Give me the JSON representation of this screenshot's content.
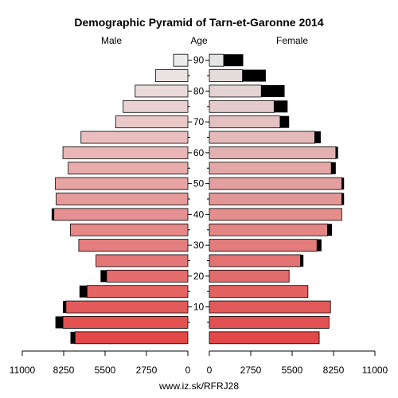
{
  "chart_data": {
    "type": "bar",
    "title": "Demographic Pyramid of Tarn-et-Garonne 2014",
    "left_label": "Male",
    "center_label": "Age",
    "right_label": "Female",
    "footer": "www.iz.sk/RFRJ28",
    "x_max": 11000,
    "x_tick_values": [
      11000,
      8250,
      5500,
      2750,
      0
    ],
    "x_tick_labels_male": [
      "11000",
      "8250",
      "5500",
      "2750",
      "0"
    ],
    "x_tick_labels_female": [
      "0",
      "2750",
      "5500",
      "8250",
      "11000"
    ],
    "age_ticks": [
      10,
      20,
      30,
      40,
      50,
      60,
      70,
      80,
      90
    ],
    "age_tick_labels": [
      "10",
      "20",
      "30",
      "40",
      "50",
      "60",
      "70",
      "80",
      "90"
    ],
    "age_groups": [
      "0-4",
      "5-9",
      "10-14",
      "15-19",
      "20-24",
      "25-29",
      "30-34",
      "35-39",
      "40-44",
      "45-49",
      "50-54",
      "55-59",
      "60-64",
      "65-69",
      "70-74",
      "75-79",
      "80-84",
      "85-89",
      "90+"
    ],
    "male": [
      7500,
      8300,
      8100,
      6700,
      5400,
      6100,
      7250,
      7800,
      8900,
      8750,
      8800,
      7950,
      8300,
      7100,
      4800,
      4300,
      3500,
      2150,
      950
    ],
    "male_excess": [
      300,
      500,
      200,
      500,
      400,
      0,
      0,
      0,
      150,
      0,
      0,
      0,
      0,
      0,
      0,
      0,
      0,
      0,
      0
    ],
    "female": [
      7300,
      7950,
      8050,
      6550,
      5300,
      6050,
      7150,
      7850,
      8800,
      8800,
      8800,
      8100,
      8400,
      7000,
      4700,
      4300,
      3450,
      2200,
      950
    ],
    "female_excess": [
      0,
      0,
      0,
      0,
      0,
      200,
      300,
      300,
      0,
      150,
      150,
      300,
      150,
      400,
      600,
      900,
      1550,
      1550,
      1300
    ],
    "colors": {
      "male_young": "#e24848",
      "male_old": "#ececec",
      "female_young": "#e24848",
      "female_old": "#e4e4e4",
      "excess": "#000000",
      "outline": "#000000"
    }
  }
}
